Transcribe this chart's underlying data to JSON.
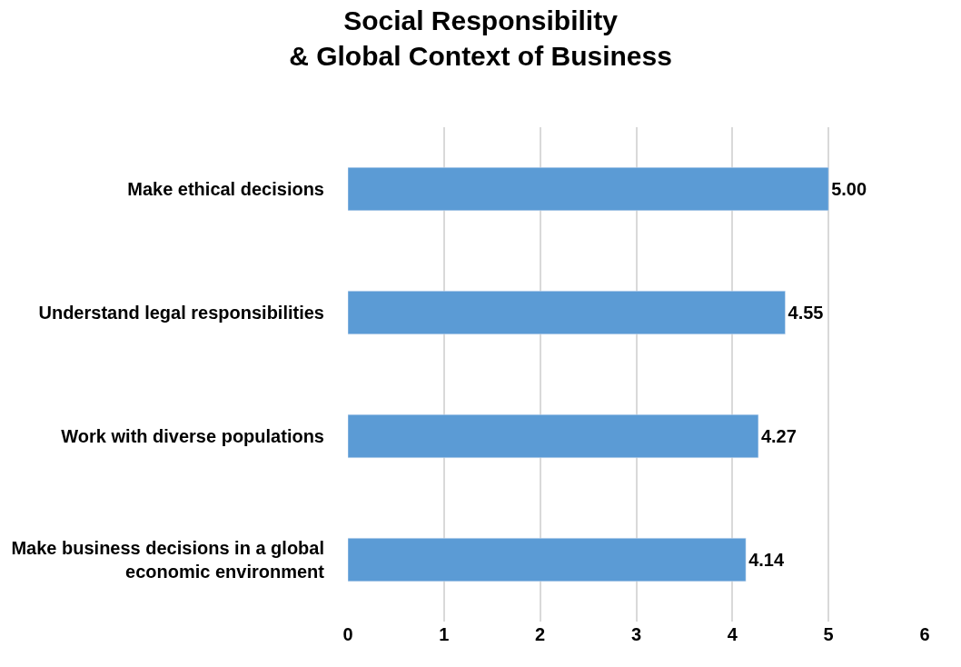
{
  "chart_data": {
    "type": "bar",
    "orientation": "horizontal",
    "title": "Social Responsibility\n& Global Context of Business",
    "categories": [
      "Make ethical decisions",
      "Understand legal responsibilities",
      "Work with diverse populations",
      "Make business decisions in a global economic environment"
    ],
    "values": [
      5.0,
      4.55,
      4.27,
      4.14
    ],
    "value_labels": [
      "5.00",
      "4.55",
      "4.27",
      "4.14"
    ],
    "color": "#5b9bd5",
    "xlim": [
      0,
      6
    ],
    "xticks": [
      0,
      1,
      2,
      3,
      4,
      5,
      6
    ],
    "grid": "x",
    "legend": false
  }
}
